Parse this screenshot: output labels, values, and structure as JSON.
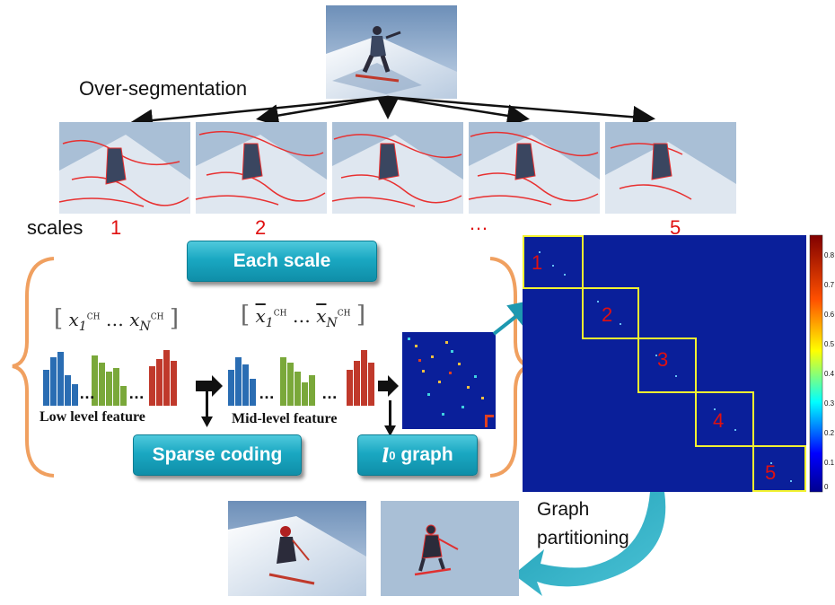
{
  "labels": {
    "over_segmentation": "Over-segmentation",
    "scales": "scales",
    "scale_numbers": [
      "1",
      "2",
      "…",
      "5"
    ],
    "each_scale": "Each scale",
    "low_level_feature": "Low level feature",
    "mid_level_feature": "Mid-level feature",
    "sparse_coding": "Sparse coding",
    "graph_label_symbol": "l",
    "graph_label_sub": "0",
    "graph_label_word": "graph",
    "graph_partitioning": "Graph partitioning",
    "ellipsis": "…",
    "x_first": "x",
    "x_last": "x",
    "x_sub_first": "1",
    "x_sub_last": "N",
    "x_sup": "CH"
  },
  "matrix": {
    "block_labels": [
      "1",
      "2",
      "3",
      "4",
      "5"
    ],
    "colorbar_ticks": [
      "0.8",
      "0.7",
      "0.6",
      "0.5",
      "0.4",
      "0.3",
      "0.2",
      "0.1",
      "0"
    ]
  },
  "colors": {
    "button": "#1aa8c2",
    "brace": "#f0a060",
    "matrix_bg": "#0a1f9a",
    "block_outline": "#f2f230",
    "number_red": "#e01010",
    "hist_blue": "#2a6db3",
    "hist_green": "#7aa83a",
    "hist_red": "#c0392b"
  }
}
